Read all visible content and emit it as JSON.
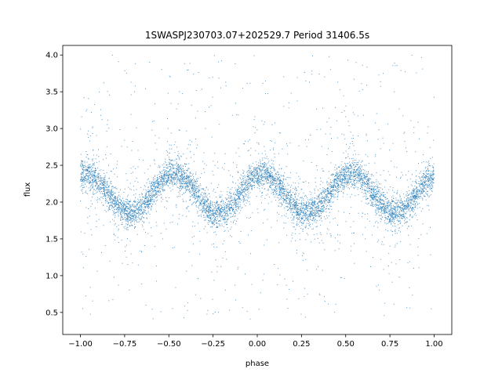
{
  "chart_data": {
    "type": "scatter",
    "title": "1SWASPJ230703.07+202529.7 Period 31406.5s",
    "xlabel": "phase",
    "ylabel": "flux",
    "xlim": [
      -1.1,
      1.1
    ],
    "ylim": [
      0.2,
      4.13
    ],
    "xticks": [
      -1.0,
      -0.75,
      -0.5,
      -0.25,
      0.0,
      0.25,
      0.5,
      0.75,
      1.0
    ],
    "xtick_labels": [
      "−1.00",
      "−0.75",
      "−0.50",
      "−0.25",
      "0.00",
      "0.25",
      "0.50",
      "0.75",
      "1.00"
    ],
    "yticks": [
      0.5,
      1.0,
      1.5,
      2.0,
      2.5,
      3.0,
      3.5,
      4.0
    ],
    "ytick_labels": [
      "0.5",
      "1.0",
      "1.5",
      "2.0",
      "2.5",
      "3.0",
      "3.5",
      "4.0"
    ],
    "grid": false,
    "marker_color": "#1f77b4",
    "marker": "tiny dots",
    "scatter_spread_flux": 0.1,
    "outlier_flux_range": [
      0.4,
      4.0
    ],
    "binned_flux": {
      "x": [
        -1.0,
        -0.95,
        -0.9,
        -0.85,
        -0.8,
        -0.75,
        -0.7,
        -0.65,
        -0.6,
        -0.55,
        -0.5,
        -0.45,
        -0.4,
        -0.35,
        -0.3,
        -0.25,
        -0.2,
        -0.15,
        -0.1,
        -0.05,
        0.0,
        0.05,
        0.1,
        0.15,
        0.2,
        0.25,
        0.3,
        0.35,
        0.4,
        0.45,
        0.5,
        0.55,
        0.6,
        0.65,
        0.7,
        0.75,
        0.8,
        0.85,
        0.9,
        0.95,
        1.0
      ],
      "y": [
        2.38,
        2.39,
        2.3,
        2.14,
        1.97,
        1.86,
        1.85,
        1.94,
        2.1,
        2.27,
        2.38,
        2.39,
        2.3,
        2.14,
        1.97,
        1.86,
        1.85,
        1.94,
        2.1,
        2.27,
        2.38,
        2.39,
        2.3,
        2.14,
        1.97,
        1.86,
        1.85,
        1.94,
        2.1,
        2.27,
        2.38,
        2.39,
        2.3,
        2.14,
        1.97,
        1.86,
        1.85,
        1.94,
        2.1,
        2.27,
        2.38
      ]
    }
  }
}
